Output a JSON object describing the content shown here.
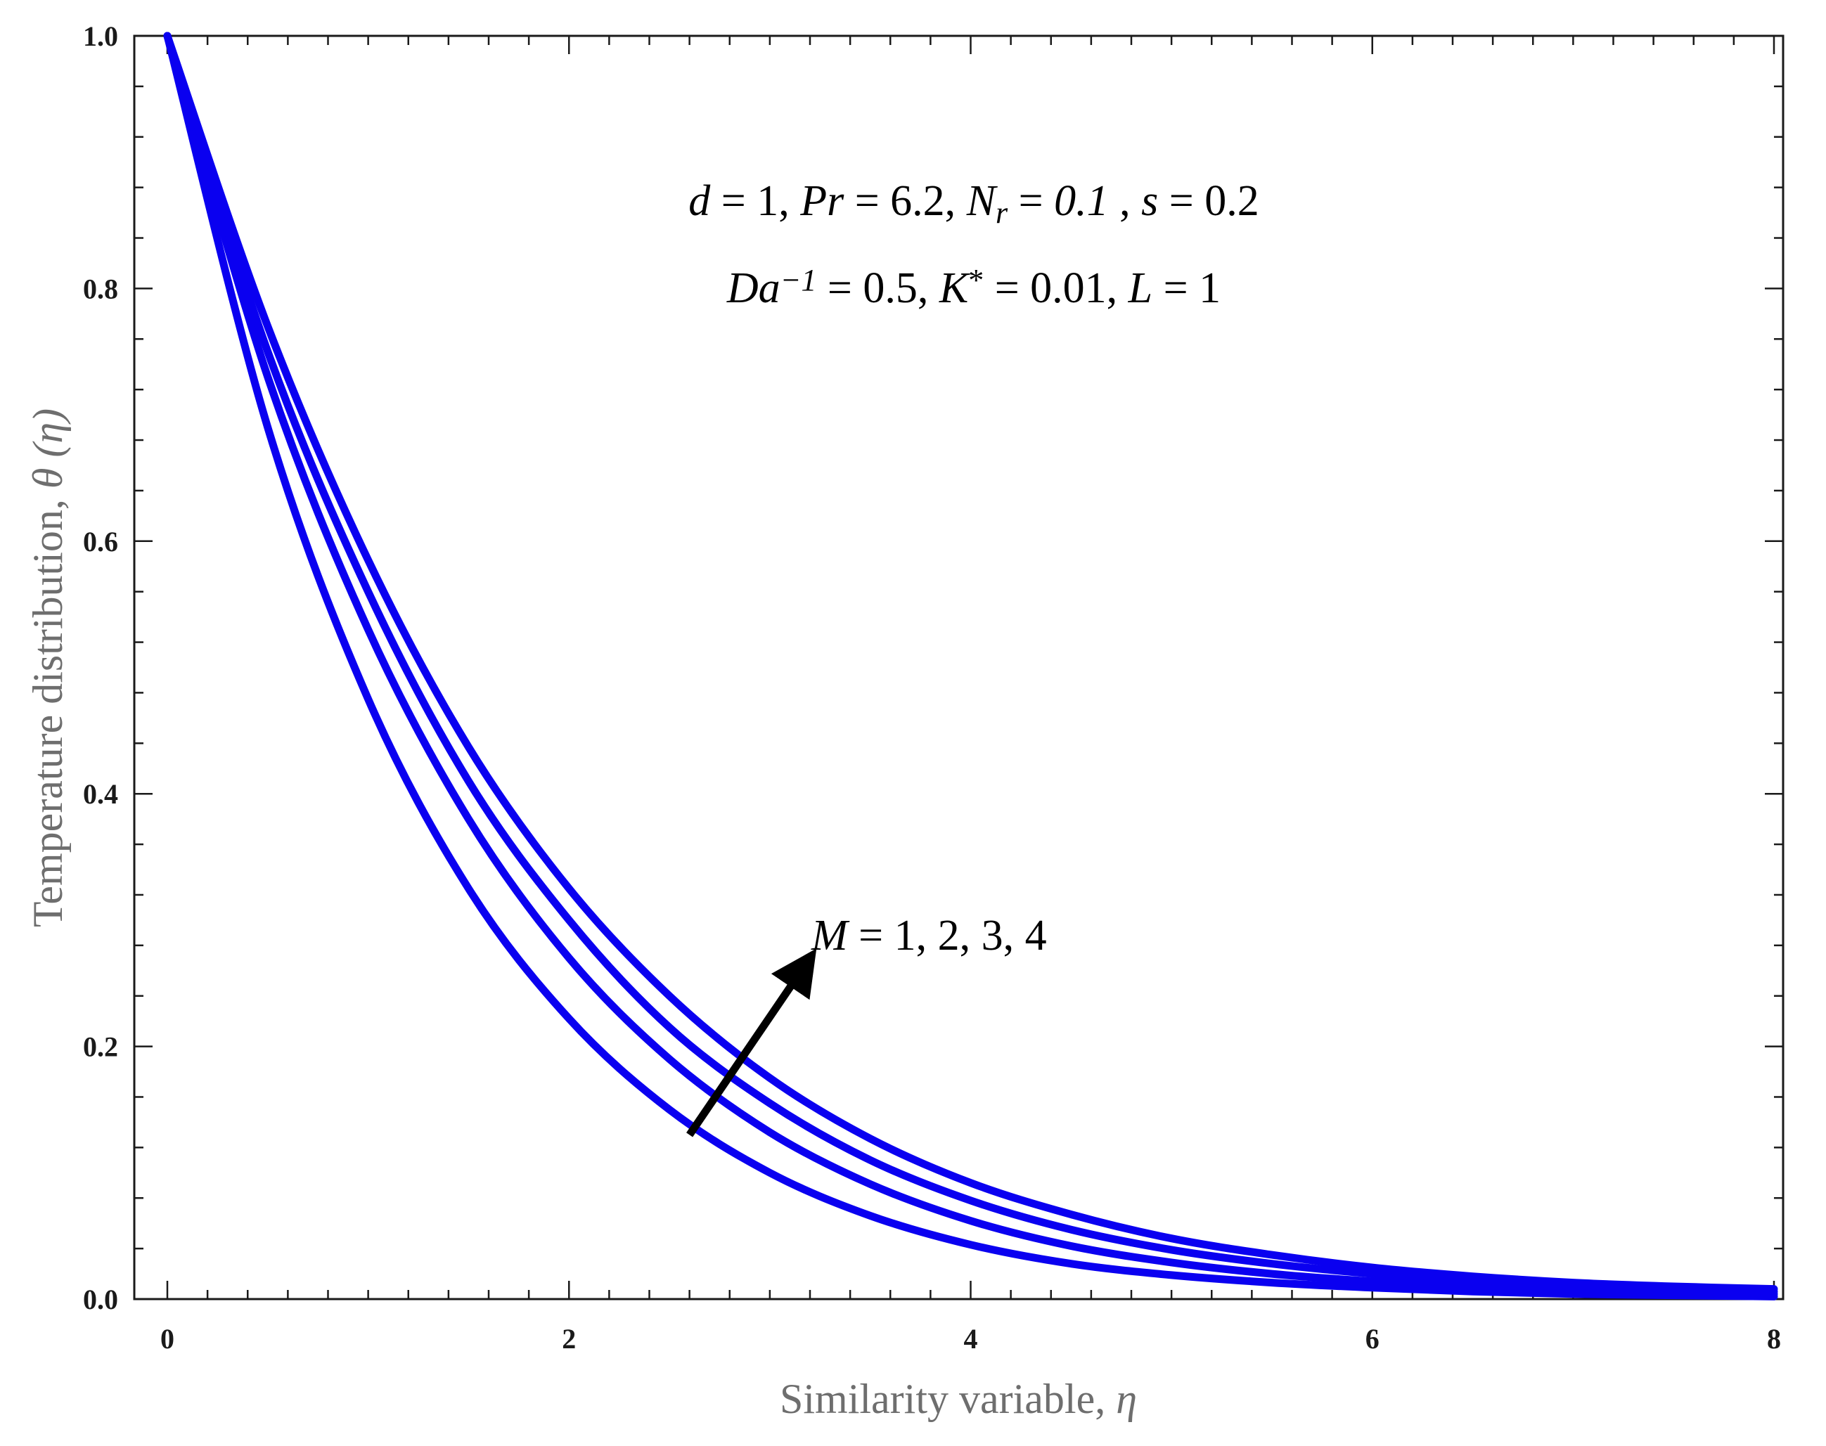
{
  "chart_data": {
    "type": "line",
    "xlabel": {
      "text": "Similarity variable, ",
      "symbol": "η"
    },
    "ylabel": {
      "text": "Temperature distribution, ",
      "symbol": "θ (η)"
    },
    "xlim": [
      0,
      8
    ],
    "ylim": [
      0,
      1
    ],
    "xticks": [
      0,
      2,
      4,
      6,
      8
    ],
    "yticks": [
      0.0,
      0.2,
      0.4,
      0.6,
      0.8,
      1.0
    ],
    "xtick_labels": [
      "0",
      "2",
      "4",
      "6",
      "8"
    ],
    "ytick_labels": [
      "0.0",
      "0.2",
      "0.4",
      "0.6",
      "0.8",
      "1.0"
    ],
    "grid": false,
    "series_color": "#0a00f0",
    "x": [
      0,
      0.5,
      1,
      1.5,
      2,
      2.5,
      3,
      3.5,
      4,
      4.5,
      5,
      5.5,
      6,
      6.5,
      7,
      7.5,
      8
    ],
    "series": [
      {
        "values": [
          1.0,
          0.69,
          0.475,
          0.325,
          0.222,
          0.15,
          0.1,
          0.066,
          0.043,
          0.028,
          0.019,
          0.013,
          0.009,
          0.006,
          0.004,
          0.003,
          0.002
        ]
      },
      {
        "values": [
          1.0,
          0.73,
          0.53,
          0.38,
          0.27,
          0.19,
          0.132,
          0.091,
          0.062,
          0.042,
          0.029,
          0.02,
          0.014,
          0.01,
          0.007,
          0.005,
          0.004
        ]
      },
      {
        "values": [
          1.0,
          0.75,
          0.56,
          0.41,
          0.3,
          0.215,
          0.155,
          0.11,
          0.078,
          0.055,
          0.039,
          0.028,
          0.02,
          0.014,
          0.01,
          0.008,
          0.006
        ]
      },
      {
        "values": [
          1.0,
          0.77,
          0.585,
          0.437,
          0.325,
          0.24,
          0.175,
          0.127,
          0.092,
          0.067,
          0.048,
          0.035,
          0.025,
          0.018,
          0.013,
          0.01,
          0.008
        ]
      }
    ],
    "annotations": {
      "params_line1": [
        {
          "t": "d",
          "i": true
        },
        {
          "t": " = 1, ",
          "i": false
        },
        {
          "t": "Pr",
          "i": true
        },
        {
          "t": " = 6.2, ",
          "i": false
        },
        {
          "t": "N",
          "i": true
        },
        {
          "t": "r",
          "i": true,
          "sub": true
        },
        {
          "t": " = ",
          "i": false
        },
        {
          "t": "0.1",
          "i": true
        },
        {
          "t": " , ",
          "i": false
        },
        {
          "t": "s",
          "i": true
        },
        {
          "t": " = 0.2",
          "i": false
        }
      ],
      "params_line2": [
        {
          "t": "Da",
          "i": true
        },
        {
          "t": "−1",
          "i": true,
          "sup": true
        },
        {
          "t": " = 0.5, ",
          "i": false
        },
        {
          "t": "K",
          "i": true
        },
        {
          "t": "*",
          "i": false,
          "sup": true
        },
        {
          "t": " = 0.01, ",
          "i": false
        },
        {
          "t": "L",
          "i": true
        },
        {
          "t": " = 1",
          "i": false
        }
      ],
      "arrow_label": [
        {
          "t": "M",
          "i": true
        },
        {
          "t": " = 1, 2, 3, 4",
          "i": false
        }
      ],
      "arrow": {
        "from": [
          2.6,
          0.13
        ],
        "to": [
          3.2,
          0.27
        ]
      }
    }
  }
}
